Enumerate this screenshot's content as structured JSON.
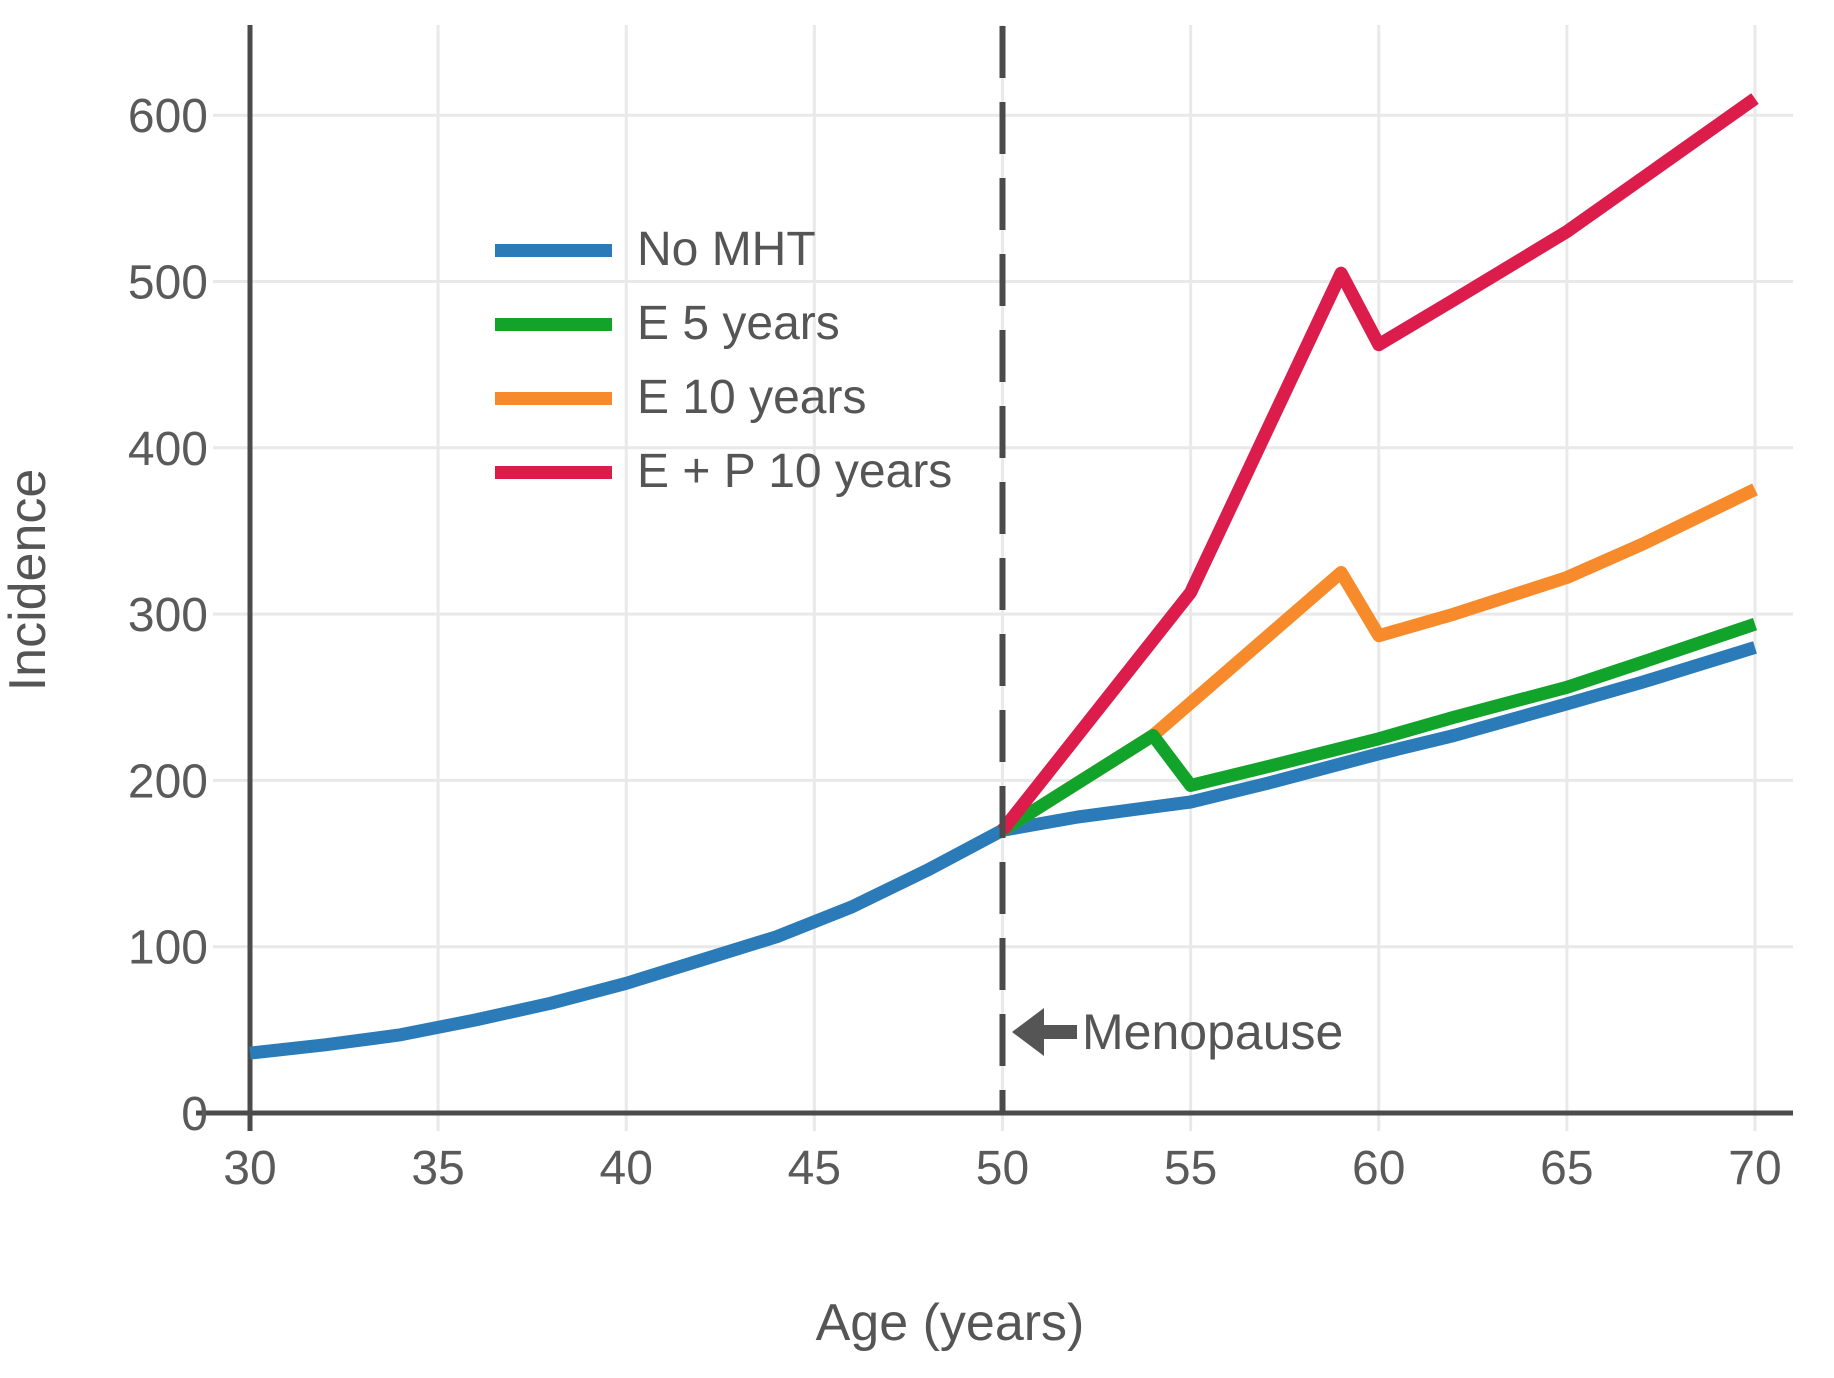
{
  "chart_data": {
    "type": "line",
    "title": "",
    "xlabel": "Age (years)",
    "ylabel": "Incidence",
    "xlim": [
      30,
      71
    ],
    "ylim": [
      0,
      654
    ],
    "x_ticks": [
      30,
      35,
      40,
      45,
      50,
      55,
      60,
      65,
      70
    ],
    "y_ticks": [
      0,
      100,
      200,
      300,
      400,
      500,
      600
    ],
    "grid": true,
    "legend_position": "upper-left-inside",
    "series": [
      {
        "name": "No MHT",
        "color": "#2b7bb9",
        "points": [
          [
            30,
            36
          ],
          [
            32,
            41
          ],
          [
            34,
            47
          ],
          [
            36,
            56
          ],
          [
            38,
            66
          ],
          [
            40,
            78
          ],
          [
            42,
            92
          ],
          [
            44,
            106
          ],
          [
            46,
            124
          ],
          [
            48,
            146
          ],
          [
            50,
            170
          ],
          [
            52,
            178
          ],
          [
            55,
            187
          ],
          [
            57,
            198
          ],
          [
            60,
            216
          ],
          [
            62,
            227
          ],
          [
            65,
            246
          ],
          [
            67,
            259
          ],
          [
            70,
            280
          ]
        ]
      },
      {
        "name": "E 5 years",
        "color": "#12a32b",
        "points": [
          [
            50,
            170
          ],
          [
            54,
            227
          ],
          [
            55,
            197
          ],
          [
            57,
            208
          ],
          [
            60,
            225
          ],
          [
            62,
            238
          ],
          [
            65,
            256
          ],
          [
            67,
            271
          ],
          [
            70,
            294
          ]
        ]
      },
      {
        "name": "E 10 years",
        "color": "#f78b2c",
        "points": [
          [
            50,
            170
          ],
          [
            54,
            227
          ],
          [
            59,
            325
          ],
          [
            60,
            287
          ],
          [
            62,
            300
          ],
          [
            65,
            322
          ],
          [
            67,
            342
          ],
          [
            70,
            375
          ]
        ]
      },
      {
        "name": "E + P 10 years",
        "color": "#dc1c4b",
        "points": [
          [
            50,
            170
          ],
          [
            55,
            313
          ],
          [
            59,
            505
          ],
          [
            60,
            462
          ],
          [
            62,
            489
          ],
          [
            65,
            530
          ],
          [
            67,
            562
          ],
          [
            70,
            610
          ]
        ]
      }
    ],
    "annotation": {
      "x": 50,
      "label": "Menopause"
    }
  }
}
